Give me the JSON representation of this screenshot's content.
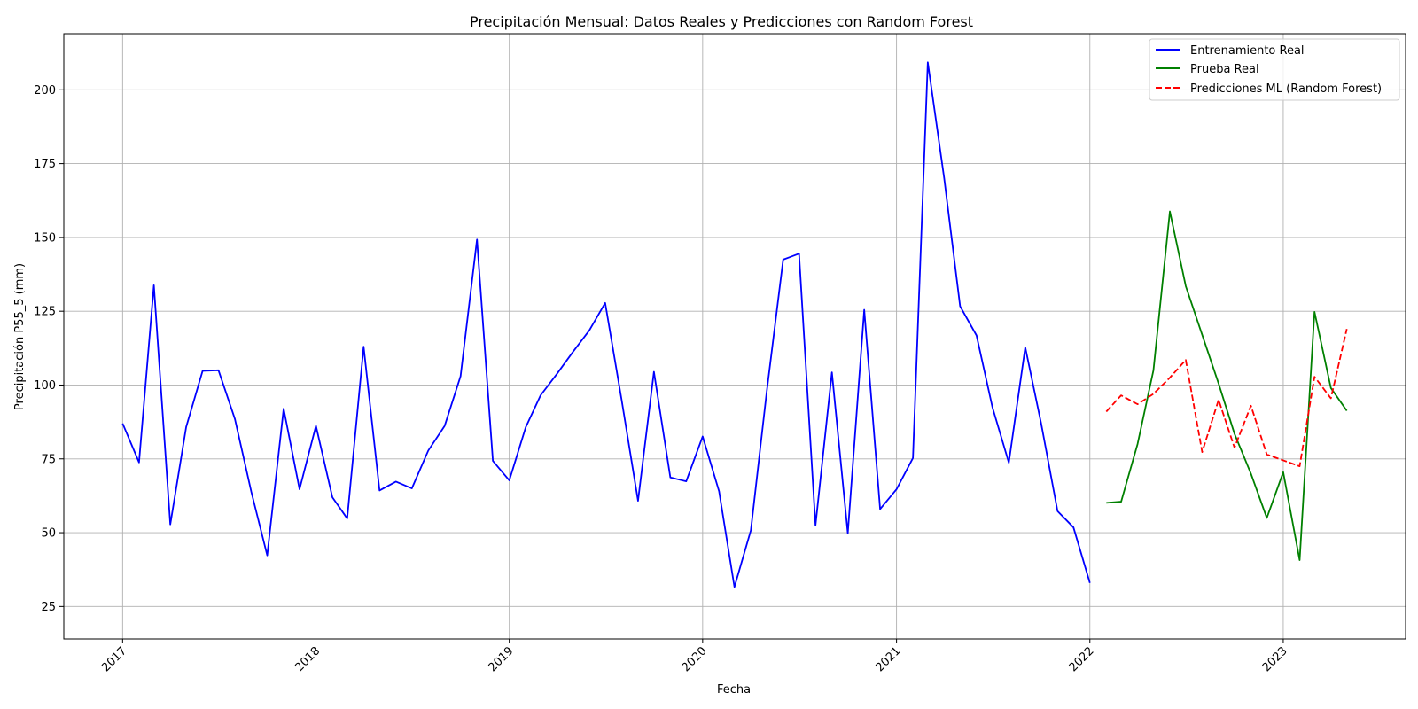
{
  "chart_data": {
    "type": "line",
    "title": "Precipitación Mensual: Datos Reales y Predicciones con Random Forest",
    "xlabel": "Fecha",
    "ylabel": "Precipitación P55_5 (mm)",
    "xlim": [
      "2016-09-12",
      "2023-08-20"
    ],
    "ylim": [
      14,
      219
    ],
    "x_ticks": [
      "2017-01-01",
      "2018-01-01",
      "2019-01-01",
      "2020-01-01",
      "2021-01-01",
      "2022-01-01",
      "2023-01-01"
    ],
    "x_tick_labels": [
      "2017",
      "2018",
      "2019",
      "2020",
      "2021",
      "2022",
      "2023"
    ],
    "y_ticks": [
      25,
      50,
      75,
      100,
      125,
      150,
      175,
      200
    ],
    "grid": true,
    "legend_position": "top-right",
    "series": [
      {
        "name": "Entrenamiento Real",
        "color": "#0000ff",
        "style": "solid",
        "x": [
          "2017-01-01",
          "2017-02-01",
          "2017-03-01",
          "2017-04-01",
          "2017-05-01",
          "2017-06-01",
          "2017-07-01",
          "2017-08-01",
          "2017-09-01",
          "2017-10-01",
          "2017-11-01",
          "2017-12-01",
          "2018-01-01",
          "2018-02-01",
          "2018-03-01",
          "2018-04-01",
          "2018-05-01",
          "2018-06-01",
          "2018-07-01",
          "2018-08-01",
          "2018-09-01",
          "2018-10-01",
          "2018-11-01",
          "2018-12-01",
          "2019-01-01",
          "2019-02-01",
          "2019-03-01",
          "2019-04-01",
          "2019-05-01",
          "2019-06-01",
          "2019-07-01",
          "2019-08-01",
          "2019-09-01",
          "2019-10-01",
          "2019-11-01",
          "2019-12-01",
          "2020-01-01",
          "2020-02-01",
          "2020-03-01",
          "2020-04-01",
          "2020-05-01",
          "2020-06-01",
          "2020-07-01",
          "2020-08-01",
          "2020-09-01",
          "2020-10-01",
          "2020-11-01",
          "2020-12-01",
          "2021-01-01",
          "2021-02-01",
          "2021-03-01",
          "2021-04-01",
          "2021-05-01",
          "2021-06-01",
          "2021-07-01",
          "2021-08-01",
          "2021-09-01",
          "2021-10-01",
          "2021-11-01",
          "2021-12-01",
          "2022-01-01"
        ],
        "values": [
          87.0,
          73.8,
          133.8,
          52.8,
          85.8,
          104.8,
          105.0,
          88.5,
          63.8,
          42.3,
          92.0,
          64.7,
          86.2,
          62.0,
          54.8,
          113.0,
          64.3,
          67.3,
          65.0,
          77.8,
          86.2,
          103.0,
          149.3,
          74.3,
          67.7,
          85.7,
          96.5,
          103.8,
          111.2,
          118.5,
          127.8,
          95.0,
          60.8,
          104.5,
          68.7,
          67.4,
          82.6,
          64.0,
          31.6,
          50.8,
          97.8,
          142.5,
          144.5,
          52.5,
          104.3,
          49.8,
          125.5,
          58.0,
          64.7,
          75.3,
          209.3,
          170.0,
          126.7,
          116.8,
          92.5,
          73.7,
          112.8,
          87.0,
          57.3,
          51.8,
          33.0
        ]
      },
      {
        "name": "Prueba Real",
        "color": "#008000",
        "style": "solid",
        "x": [
          "2022-02-01",
          "2022-03-01",
          "2022-04-01",
          "2022-05-01",
          "2022-06-01",
          "2022-07-01",
          "2022-08-01",
          "2022-09-01",
          "2022-10-01",
          "2022-11-01",
          "2022-12-01",
          "2023-01-01",
          "2023-02-01",
          "2023-03-01",
          "2023-04-01",
          "2023-05-01"
        ],
        "values": [
          60.1,
          60.5,
          80.0,
          105.0,
          158.8,
          133.5,
          117.0,
          100.5,
          83.5,
          70.0,
          55.0,
          70.5,
          40.7,
          124.8,
          99.0,
          91.3
        ]
      },
      {
        "name": "Predicciones ML (Random Forest)",
        "color": "#ff0000",
        "style": "dashed",
        "x": [
          "2022-02-01",
          "2022-03-01",
          "2022-04-01",
          "2022-05-01",
          "2022-06-01",
          "2022-07-01",
          "2022-08-01",
          "2022-09-01",
          "2022-10-01",
          "2022-11-01",
          "2022-12-01",
          "2023-01-01",
          "2023-02-01",
          "2023-03-01",
          "2023-04-01",
          "2023-05-01"
        ],
        "values": [
          91.0,
          96.5,
          93.5,
          97.0,
          102.5,
          108.5,
          77.3,
          95.0,
          78.8,
          93.0,
          76.5,
          74.5,
          72.5,
          102.8,
          95.5,
          119.0
        ]
      }
    ]
  }
}
